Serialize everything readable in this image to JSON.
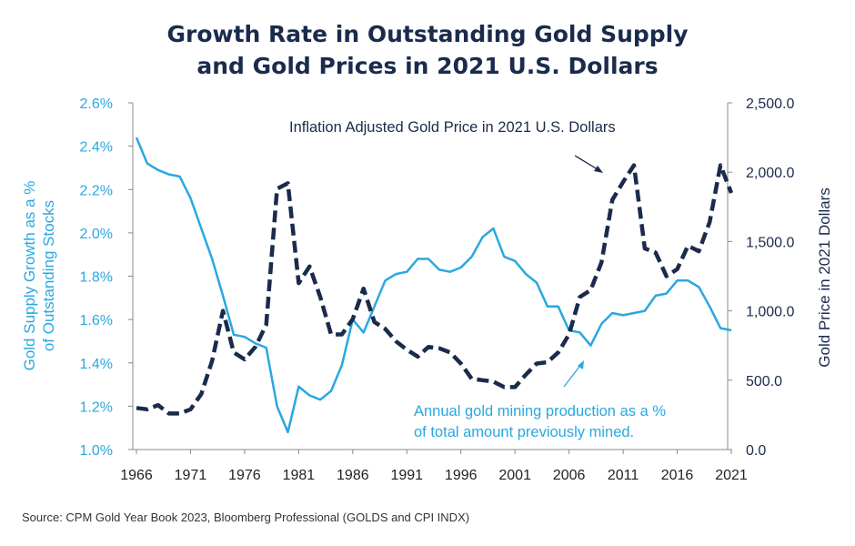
{
  "title_line1": "Growth Rate in Outstanding Gold Supply",
  "title_line2": "and Gold Prices in 2021 U.S. Dollars",
  "source": "Source: CPM Gold Year Book 2023, Bloomberg Professional (GOLDS and CPI INDX)",
  "colors": {
    "supply": "#29a8e0",
    "price": "#1a2b4c",
    "axis": "#888888"
  },
  "chart_data": {
    "type": "line",
    "title": "Growth Rate in Outstanding Gold Supply and Gold Prices in 2021 U.S. Dollars",
    "xlabel": "",
    "ylabel_left": "Gold Supply Growth as a % of Outstanding Stocks",
    "ylabel_right": "Gold Price in 2021 Dollars",
    "ylabel_left_lines": [
      "Gold Supply Growth as a %",
      "of Outstanding Stocks"
    ],
    "xlim": [
      1966,
      2021
    ],
    "ylim_left": [
      1.0,
      2.6
    ],
    "ylim_right": [
      0,
      2500
    ],
    "x_ticks": [
      1966,
      1971,
      1976,
      1981,
      1986,
      1991,
      1996,
      2001,
      2006,
      2011,
      2016,
      2021
    ],
    "y_left_ticks": [
      "1.0%",
      "1.2%",
      "1.4%",
      "1.6%",
      "1.8%",
      "2.0%",
      "2.2%",
      "2.4%",
      "2.6%"
    ],
    "y_right_ticks": [
      "0.0",
      "500.0",
      "1,000.0",
      "1,500.0",
      "2,000.0",
      "2,500.0"
    ],
    "grid": false,
    "annotations": {
      "price_line1": "Inflation Adjusted Gold Price in 2021 U.S. Dollars",
      "supply_line1": "Annual gold mining production as a %",
      "supply_line2": "of total amount previously mined."
    },
    "series": [
      {
        "axis": "left",
        "style": "solid",
        "x": [
          1966,
          1967,
          1968,
          1969,
          1970,
          1971,
          1972,
          1973,
          1974,
          1975,
          1976,
          1977,
          1978,
          1979,
          1980,
          1981,
          1982,
          1983,
          1984,
          1985,
          1986,
          1987,
          1988,
          1989,
          1990,
          1991,
          1992,
          1993,
          1994,
          1995,
          1996,
          1997,
          1998,
          1999,
          2000,
          2001,
          2002,
          2003,
          2004,
          2005,
          2006,
          2007,
          2008,
          2009,
          2010,
          2011,
          2012,
          2013,
          2014,
          2015,
          2016,
          2017,
          2018,
          2019,
          2020,
          2021
        ],
        "values": [
          2.44,
          2.32,
          2.29,
          2.27,
          2.26,
          2.16,
          2.02,
          1.88,
          1.71,
          1.53,
          1.52,
          1.49,
          1.47,
          1.2,
          1.08,
          1.29,
          1.25,
          1.23,
          1.27,
          1.39,
          1.6,
          1.54,
          1.66,
          1.78,
          1.81,
          1.82,
          1.88,
          1.88,
          1.83,
          1.82,
          1.84,
          1.89,
          1.98,
          2.02,
          1.89,
          1.87,
          1.81,
          1.77,
          1.66,
          1.66,
          1.55,
          1.54,
          1.48,
          1.58,
          1.63,
          1.62,
          1.63,
          1.64,
          1.71,
          1.72,
          1.78,
          1.78,
          1.75,
          1.66,
          1.56,
          1.55
        ]
      },
      {
        "axis": "right",
        "style": "dashed",
        "x": [
          1966,
          1967,
          1968,
          1969,
          1970,
          1971,
          1972,
          1973,
          1974,
          1975,
          1976,
          1977,
          1978,
          1979,
          1980,
          1981,
          1982,
          1983,
          1984,
          1985,
          1986,
          1987,
          1988,
          1989,
          1990,
          1991,
          1992,
          1993,
          1994,
          1995,
          1996,
          1997,
          1998,
          1999,
          2000,
          2001,
          2002,
          2003,
          2004,
          2005,
          2006,
          2007,
          2008,
          2009,
          2010,
          2011,
          2012,
          2013,
          2014,
          2015,
          2016,
          2017,
          2018,
          2019,
          2020,
          2021
        ],
        "values": [
          300,
          290,
          320,
          260,
          260,
          290,
          400,
          640,
          1000,
          700,
          650,
          740,
          900,
          1880,
          1920,
          1200,
          1320,
          1100,
          830,
          830,
          940,
          1160,
          920,
          870,
          780,
          720,
          670,
          740,
          730,
          700,
          620,
          510,
          500,
          490,
          450,
          450,
          540,
          620,
          630,
          700,
          830,
          1100,
          1150,
          1350,
          1800,
          1930,
          2050,
          1450,
          1420,
          1250,
          1300,
          1470,
          1430,
          1640,
          2050,
          1850
        ]
      }
    ]
  }
}
